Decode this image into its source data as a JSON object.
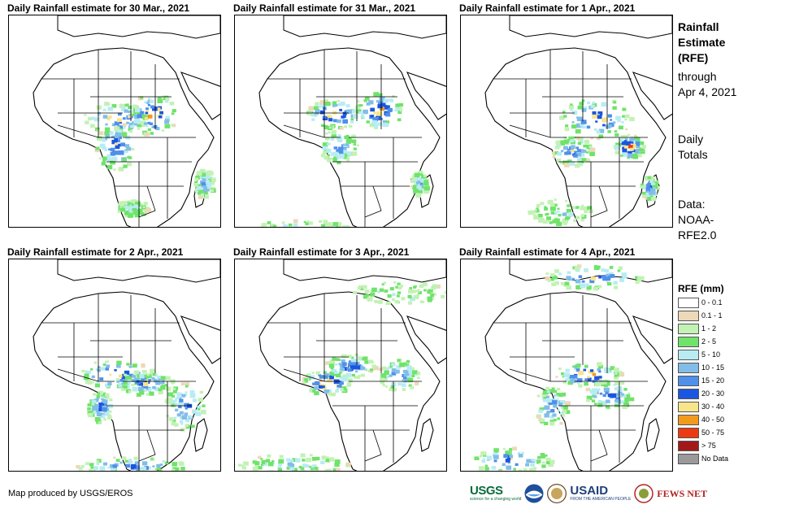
{
  "panels": [
    {
      "title": "Daily Rainfall estimate for 30 Mar., 2021"
    },
    {
      "title": "Daily Rainfall estimate for 31 Mar., 2021"
    },
    {
      "title": "Daily Rainfall estimate for 1 Apr., 2021"
    },
    {
      "title": "Daily Rainfall estimate for 2 Apr., 2021"
    },
    {
      "title": "Daily Rainfall estimate for 3 Apr., 2021"
    },
    {
      "title": "Daily Rainfall estimate for 4 Apr., 2021"
    }
  ],
  "sidebar": {
    "title_lines": [
      "Rainfall",
      "Estimate",
      "(RFE)"
    ],
    "through_lines": [
      "through",
      "Apr 4, 2021"
    ],
    "daily_lines": [
      "Daily",
      "Totals"
    ],
    "data_lines": [
      "Data:",
      "NOAA-",
      "RFE2.0"
    ]
  },
  "legend": {
    "title": "RFE (mm)",
    "items": [
      {
        "label": "0 - 0.1",
        "color": "#ffffff"
      },
      {
        "label": "0.1 - 1",
        "color": "#ecd9b8"
      },
      {
        "label": "1 - 2",
        "color": "#c2f2b4"
      },
      {
        "label": "2 - 5",
        "color": "#6fe36a"
      },
      {
        "label": "5 - 10",
        "color": "#b8ecf2"
      },
      {
        "label": "10 - 15",
        "color": "#82bde8"
      },
      {
        "label": "15 - 20",
        "color": "#4f90ea"
      },
      {
        "label": "20 - 30",
        "color": "#1a56e0"
      },
      {
        "label": "30 - 40",
        "color": "#f7e58a"
      },
      {
        "label": "40 - 50",
        "color": "#f29a1c"
      },
      {
        "label": "50 - 75",
        "color": "#ec3b12"
      },
      {
        "label": "> 75",
        "color": "#a31919"
      },
      {
        "label": "No Data",
        "color": "#9a9a9a"
      }
    ]
  },
  "footer": {
    "credit": "Map produced by USGS/EROS",
    "logos": {
      "usgs": "USGS",
      "usgs_tagline": "science for a changing world",
      "usaid": "USAID",
      "usaid_tagline": "FROM THE AMERICAN PEOPLE",
      "fews": "FEWS NET"
    }
  }
}
